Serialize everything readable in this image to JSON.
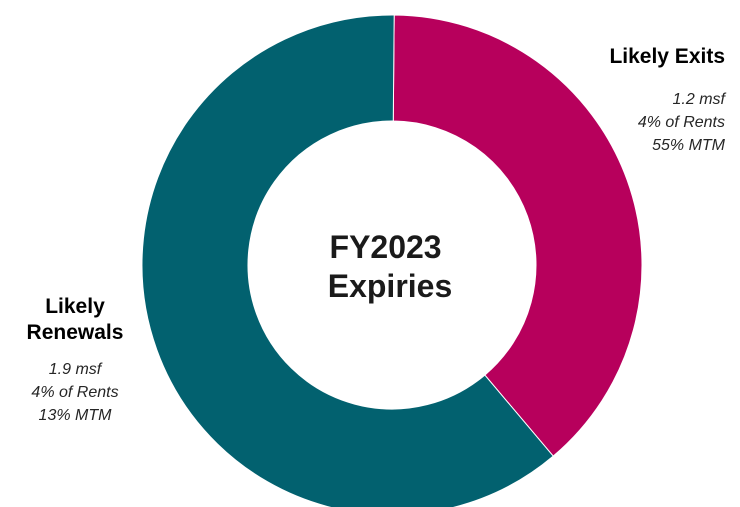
{
  "chart_data": {
    "type": "pie",
    "donut": true,
    "center_label": [
      "FY2023",
      "Expiries"
    ],
    "slices": [
      {
        "label": "Likely Exits",
        "title_lines": [
          "Likely Exits"
        ],
        "value": 1.2,
        "unit": "msf",
        "details": [
          "1.2 msf",
          "4% of Rents",
          "55% MTM"
        ],
        "color": "#b7005c"
      },
      {
        "label": "Likely Renewals",
        "title_lines": [
          "Likely",
          "Renewals"
        ],
        "value": 1.9,
        "unit": "msf",
        "details": [
          "1.9 msf",
          "4% of Rents",
          "13% MTM"
        ],
        "color": "#02616f"
      }
    ]
  }
}
